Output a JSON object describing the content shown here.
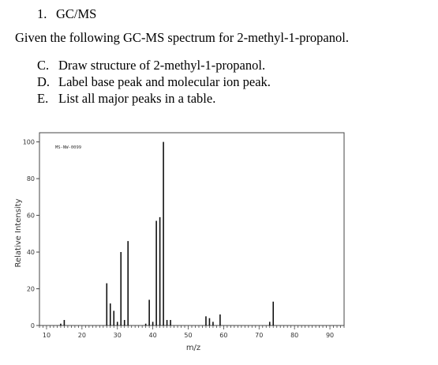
{
  "question": {
    "number": "1.",
    "title": "GC/MS",
    "intro": "Given the following GC-MS spectrum for 2-methyl-1-propanol.",
    "items": [
      {
        "letter": "C.",
        "text": "Draw structure of 2-methyl-1-propanol."
      },
      {
        "letter": "D.",
        "text": "Label base peak and molecular ion peak."
      },
      {
        "letter": "E.",
        "text": "List all major peaks in a table."
      }
    ]
  },
  "chart_data": {
    "type": "bar",
    "title": "",
    "spectrum_id": "MS-NW-0099",
    "xlabel": "m/z",
    "ylabel": "Relative Intensity",
    "xlim": [
      8,
      94
    ],
    "ylim": [
      0,
      105
    ],
    "xticks": [
      10,
      20,
      30,
      40,
      50,
      60,
      70,
      80,
      90
    ],
    "yticks": [
      0,
      20,
      40,
      60,
      80,
      100
    ],
    "grid": false,
    "peaks": [
      {
        "mz": 14,
        "intensity": 1
      },
      {
        "mz": 15,
        "intensity": 3
      },
      {
        "mz": 27,
        "intensity": 23
      },
      {
        "mz": 28,
        "intensity": 12
      },
      {
        "mz": 29,
        "intensity": 8
      },
      {
        "mz": 30,
        "intensity": 2
      },
      {
        "mz": 31,
        "intensity": 40
      },
      {
        "mz": 32,
        "intensity": 3
      },
      {
        "mz": 33,
        "intensity": 46
      },
      {
        "mz": 38,
        "intensity": 1
      },
      {
        "mz": 39,
        "intensity": 14
      },
      {
        "mz": 40,
        "intensity": 2
      },
      {
        "mz": 41,
        "intensity": 57
      },
      {
        "mz": 42,
        "intensity": 59
      },
      {
        "mz": 43,
        "intensity": 100
      },
      {
        "mz": 44,
        "intensity": 3
      },
      {
        "mz": 45,
        "intensity": 3
      },
      {
        "mz": 55,
        "intensity": 5
      },
      {
        "mz": 56,
        "intensity": 4
      },
      {
        "mz": 57,
        "intensity": 2
      },
      {
        "mz": 59,
        "intensity": 6
      },
      {
        "mz": 73,
        "intensity": 2
      },
      {
        "mz": 74,
        "intensity": 13
      }
    ]
  }
}
